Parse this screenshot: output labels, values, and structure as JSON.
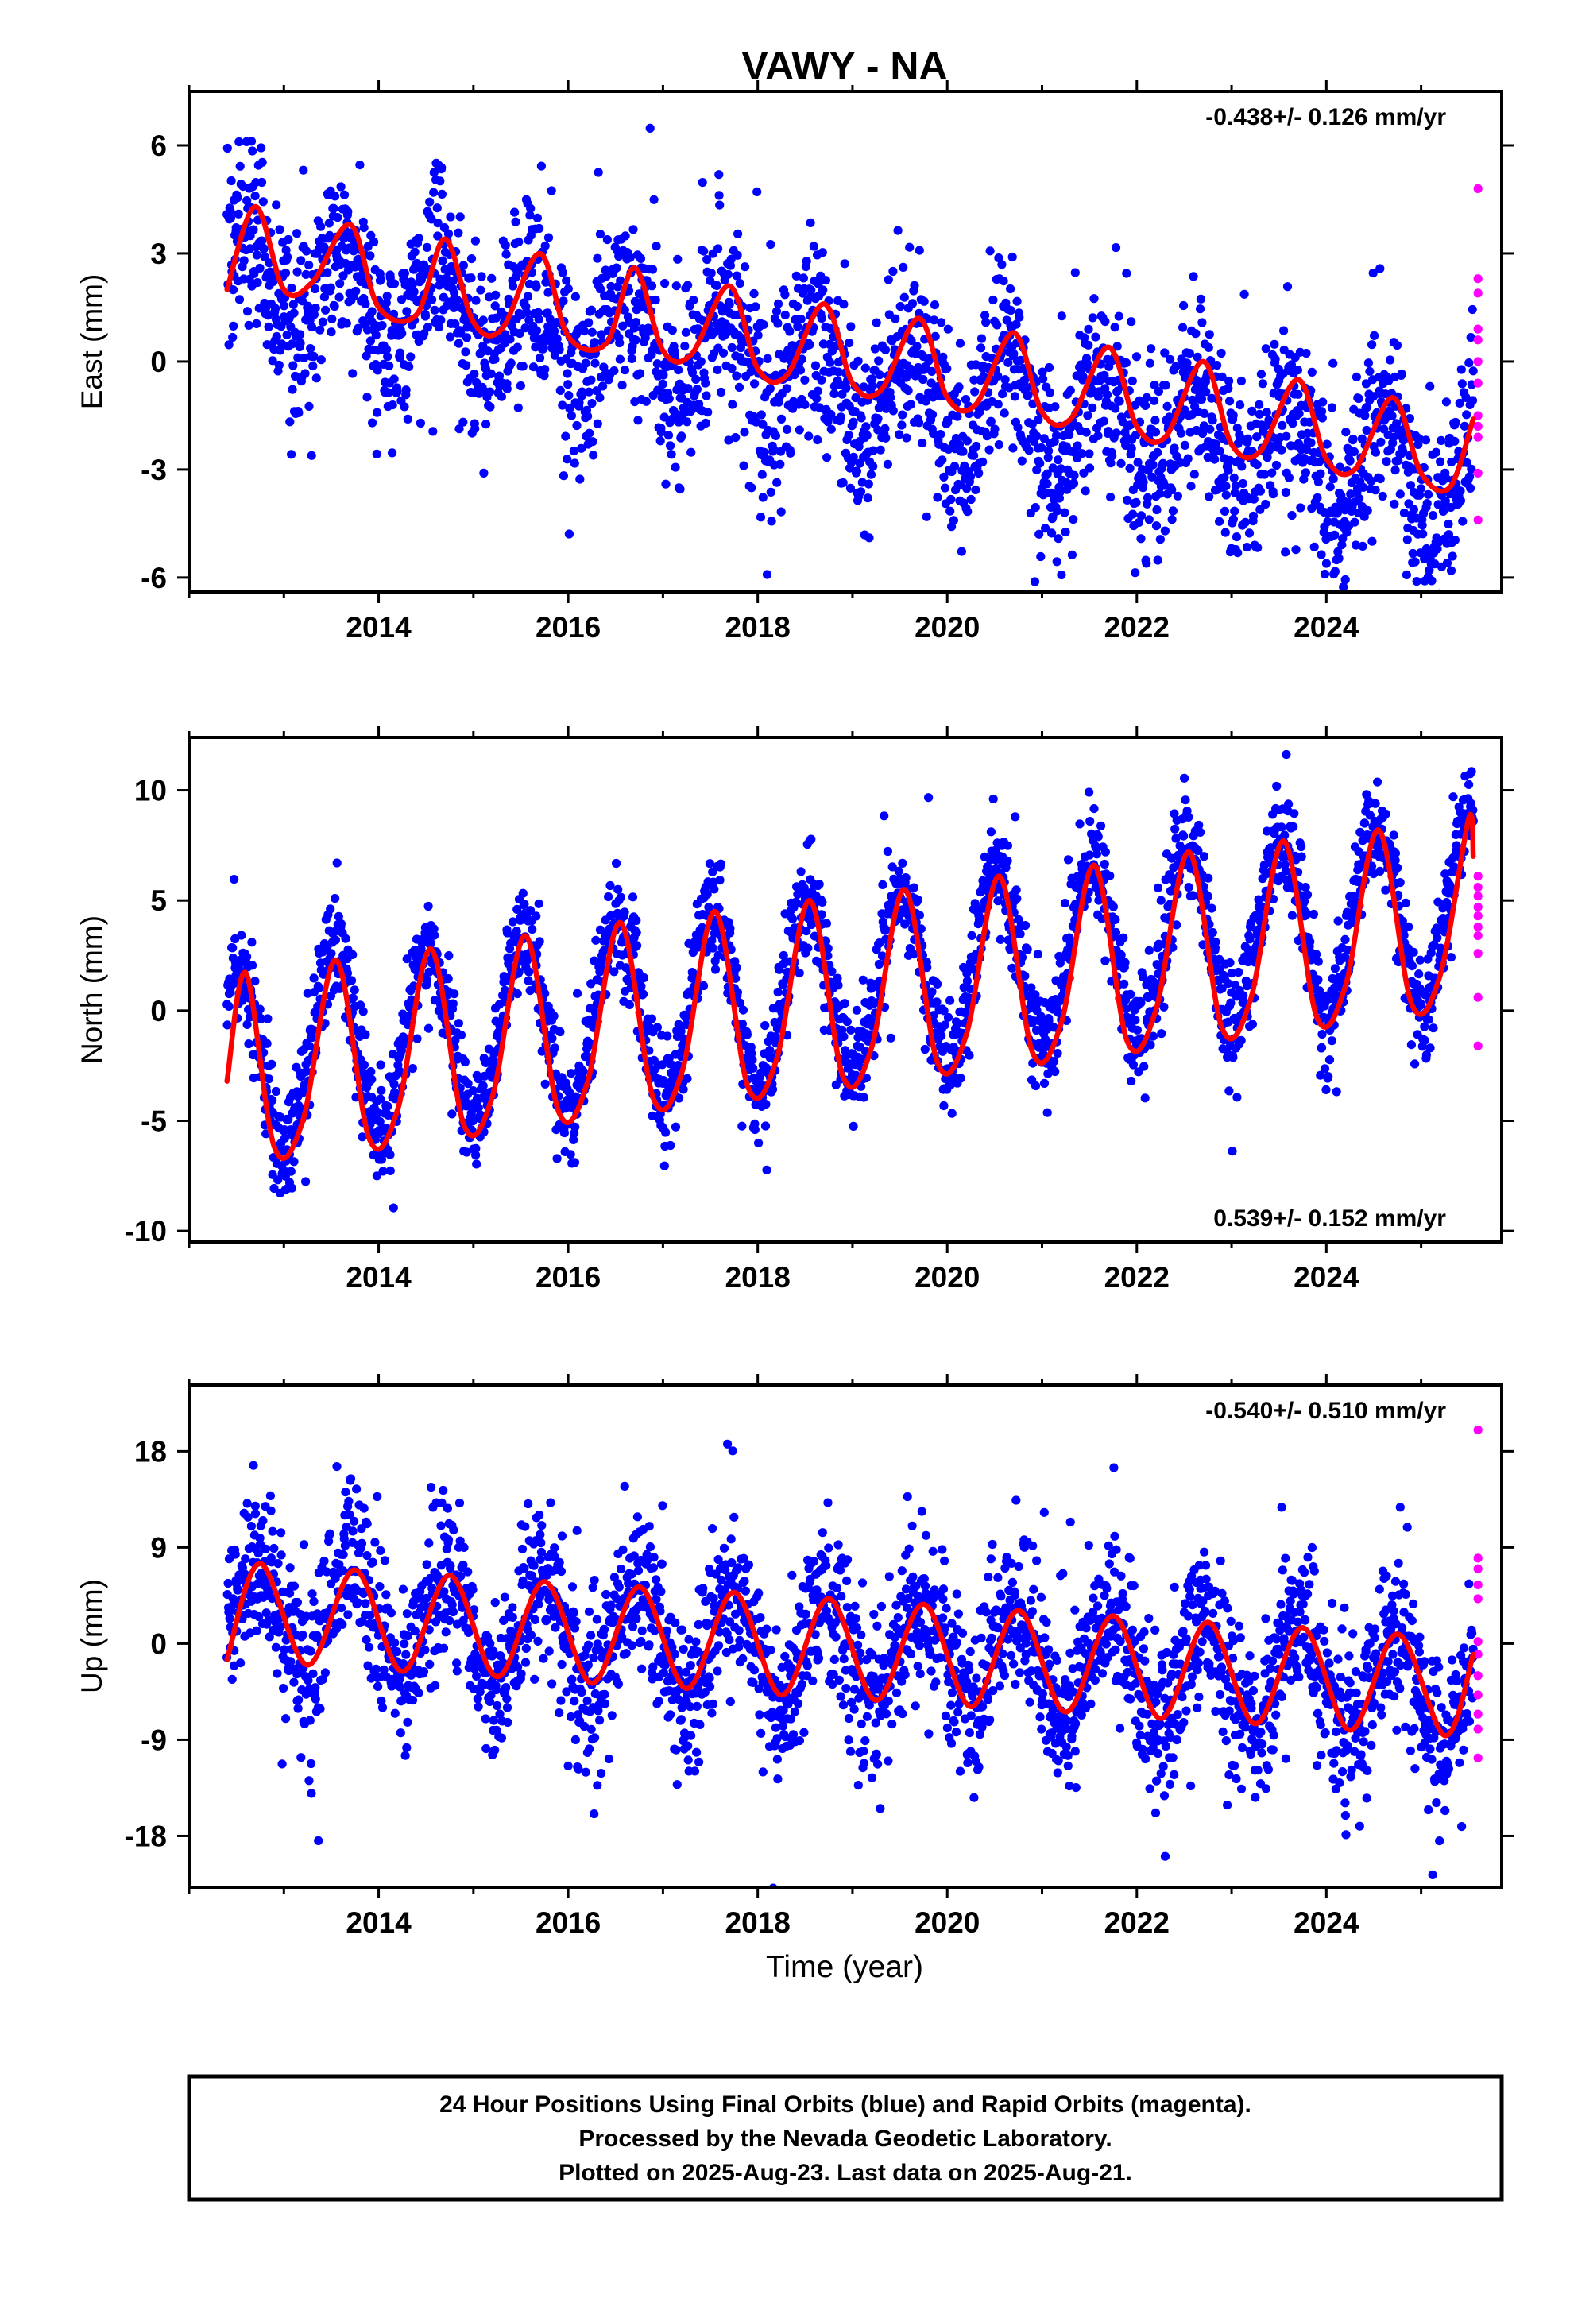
{
  "title": "VAWY - NA",
  "xlabel": "Time (year)",
  "colors": {
    "final": "#0000ff",
    "rapid": "#ff00ff",
    "model": "#ff0000",
    "frame": "#000000"
  },
  "footer": [
    "24 Hour Positions Using Final Orbits (blue) and Rapid Orbits (magenta).",
    "Processed by the Nevada Geodetic Laboratory.",
    "Plotted on 2025-Aug-23. Last data on 2025-Aug-21."
  ],
  "chart_data": [
    {
      "type": "scatter",
      "ylabel": "East (mm)",
      "rate": "-0.438+/- 0.126 mm/yr",
      "rate_position": "top-right",
      "xlim": [
        2012.0,
        2025.85
      ],
      "ylim": [
        -6.4,
        7.5
      ],
      "yticks": [
        -6,
        -3,
        0,
        3,
        6
      ],
      "xticks": [
        2014,
        2016,
        2018,
        2020,
        2022,
        2024
      ],
      "data_start": 2012.4,
      "data_end": 2025.55,
      "trend": {
        "intercept_2012_4": 2.4,
        "rate_mm_per_yr": -0.438
      },
      "seasonal": {
        "amplitude": 1.4,
        "peak_phase_year": 0.62
      },
      "scatter_sd": 1.3,
      "model_curve": [
        [
          2012.4,
          2.0
        ],
        [
          2012.7,
          4.3
        ],
        [
          2013.0,
          2.0
        ],
        [
          2013.3,
          2.2
        ],
        [
          2013.7,
          3.8
        ],
        [
          2014.0,
          1.5
        ],
        [
          2014.4,
          1.3
        ],
        [
          2014.7,
          3.4
        ],
        [
          2015.0,
          1.1
        ],
        [
          2015.3,
          0.9
        ],
        [
          2015.7,
          3.0
        ],
        [
          2016.0,
          0.7
        ],
        [
          2016.4,
          0.5
        ],
        [
          2016.7,
          2.6
        ],
        [
          2017.0,
          0.3
        ],
        [
          2017.3,
          0.2
        ],
        [
          2017.7,
          2.1
        ],
        [
          2018.0,
          -0.2
        ],
        [
          2018.3,
          -0.4
        ],
        [
          2018.7,
          1.6
        ],
        [
          2019.0,
          -0.6
        ],
        [
          2019.3,
          -0.8
        ],
        [
          2019.7,
          1.2
        ],
        [
          2020.0,
          -1.0
        ],
        [
          2020.3,
          -1.2
        ],
        [
          2020.7,
          0.8
        ],
        [
          2021.0,
          -1.4
        ],
        [
          2021.3,
          -1.6
        ],
        [
          2021.7,
          0.4
        ],
        [
          2022.0,
          -1.8
        ],
        [
          2022.3,
          -2.1
        ],
        [
          2022.7,
          -0.0
        ],
        [
          2023.0,
          -2.3
        ],
        [
          2023.3,
          -2.5
        ],
        [
          2023.7,
          -0.5
        ],
        [
          2024.0,
          -2.7
        ],
        [
          2024.3,
          -3.0
        ],
        [
          2024.7,
          -1.0
        ],
        [
          2025.0,
          -3.1
        ],
        [
          2025.3,
          -3.5
        ],
        [
          2025.55,
          -1.6
        ]
      ],
      "rapid_points": {
        "x": 2025.6,
        "values": [
          4.8,
          2.3,
          1.9,
          0.9,
          0.6,
          0.0,
          -0.6,
          -1.5,
          -1.8,
          -2.1,
          -3.1,
          -4.4
        ]
      }
    },
    {
      "type": "scatter",
      "ylabel": "North (mm)",
      "rate": "0.539+/- 0.152 mm/yr",
      "rate_position": "bottom-right",
      "xlim": [
        2012.0,
        2025.85
      ],
      "ylim": [
        -10.5,
        12.4
      ],
      "yticks": [
        -10,
        -5,
        0,
        5,
        10
      ],
      "xticks": [
        2014,
        2016,
        2018,
        2020,
        2022,
        2024
      ],
      "data_start": 2012.4,
      "data_end": 2025.55,
      "trend": {
        "intercept_2012_4": -2.3,
        "rate_mm_per_yr": 0.539
      },
      "seasonal": {
        "amplitude": 4.1,
        "peak_phase_year": 0.52
      },
      "scatter_sd": 1.2,
      "model_curve": [
        [
          2012.4,
          -3.2
        ],
        [
          2012.6,
          1.7
        ],
        [
          2012.9,
          -6.2
        ],
        [
          2013.2,
          -5.0
        ],
        [
          2013.55,
          2.3
        ],
        [
          2013.9,
          -5.8
        ],
        [
          2014.2,
          -4.5
        ],
        [
          2014.55,
          2.8
        ],
        [
          2014.9,
          -5.2
        ],
        [
          2015.2,
          -3.9
        ],
        [
          2015.55,
          3.4
        ],
        [
          2015.9,
          -4.6
        ],
        [
          2016.2,
          -3.3
        ],
        [
          2016.55,
          4.0
        ],
        [
          2016.9,
          -4.0
        ],
        [
          2017.2,
          -2.8
        ],
        [
          2017.55,
          4.5
        ],
        [
          2017.9,
          -3.5
        ],
        [
          2018.2,
          -2.2
        ],
        [
          2018.55,
          5.0
        ],
        [
          2018.9,
          -3.0
        ],
        [
          2019.2,
          -1.7
        ],
        [
          2019.55,
          5.5
        ],
        [
          2019.9,
          -2.4
        ],
        [
          2020.2,
          -1.1
        ],
        [
          2020.55,
          6.1
        ],
        [
          2020.9,
          -1.9
        ],
        [
          2021.2,
          -0.6
        ],
        [
          2021.55,
          6.6
        ],
        [
          2021.9,
          -1.4
        ],
        [
          2022.2,
          0.0
        ],
        [
          2022.55,
          7.2
        ],
        [
          2022.9,
          -0.8
        ],
        [
          2023.2,
          0.5
        ],
        [
          2023.55,
          7.7
        ],
        [
          2023.9,
          -0.3
        ],
        [
          2024.2,
          1.1
        ],
        [
          2024.55,
          8.2
        ],
        [
          2024.9,
          0.3
        ],
        [
          2025.2,
          1.6
        ],
        [
          2025.5,
          8.7
        ],
        [
          2025.55,
          7.0
        ]
      ],
      "rapid_points": {
        "x": 2025.6,
        "values": [
          6.1,
          5.6,
          5.2,
          4.7,
          4.3,
          3.8,
          3.4,
          2.6,
          0.6,
          -1.6
        ]
      }
    },
    {
      "type": "scatter",
      "ylabel": "Up (mm)",
      "rate": "-0.540+/- 0.510 mm/yr",
      "rate_position": "top-right",
      "xlim": [
        2012.0,
        2025.85
      ],
      "ylim": [
        -22.8,
        24.2
      ],
      "yticks": [
        -18,
        -9,
        0,
        9,
        18
      ],
      "xticks": [
        2014,
        2016,
        2018,
        2020,
        2022,
        2024
      ],
      "data_start": 2012.4,
      "data_end": 2025.55,
      "trend": {
        "intercept_2012_4": 2.8,
        "rate_mm_per_yr": -0.54
      },
      "seasonal": {
        "amplitude": 4.9,
        "peak_phase_year": 0.72
      },
      "scatter_sd": 3.8,
      "model_curve": [
        [
          2012.4,
          -1.5
        ],
        [
          2012.75,
          7.5
        ],
        [
          2013.25,
          -2.0
        ],
        [
          2013.75,
          6.9
        ],
        [
          2014.25,
          -2.6
        ],
        [
          2014.75,
          6.4
        ],
        [
          2015.25,
          -3.1
        ],
        [
          2015.75,
          5.8
        ],
        [
          2016.25,
          -3.7
        ],
        [
          2016.75,
          5.3
        ],
        [
          2017.25,
          -4.2
        ],
        [
          2017.75,
          4.8
        ],
        [
          2018.25,
          -4.8
        ],
        [
          2018.75,
          4.2
        ],
        [
          2019.25,
          -5.3
        ],
        [
          2019.75,
          3.7
        ],
        [
          2020.25,
          -5.9
        ],
        [
          2020.75,
          3.1
        ],
        [
          2021.25,
          -6.4
        ],
        [
          2021.75,
          2.6
        ],
        [
          2022.25,
          -7.0
        ],
        [
          2022.75,
          2.0
        ],
        [
          2023.25,
          -7.5
        ],
        [
          2023.75,
          1.5
        ],
        [
          2024.25,
          -8.1
        ],
        [
          2024.75,
          0.9
        ],
        [
          2025.25,
          -8.6
        ],
        [
          2025.55,
          -1.0
        ]
      ],
      "rapid_points": {
        "x": 2025.6,
        "values": [
          20.0,
          8.0,
          7.0,
          5.5,
          4.2,
          0.2,
          -1.0,
          -3.0,
          -4.8,
          -6.6,
          -8.0,
          -10.7
        ]
      }
    }
  ]
}
